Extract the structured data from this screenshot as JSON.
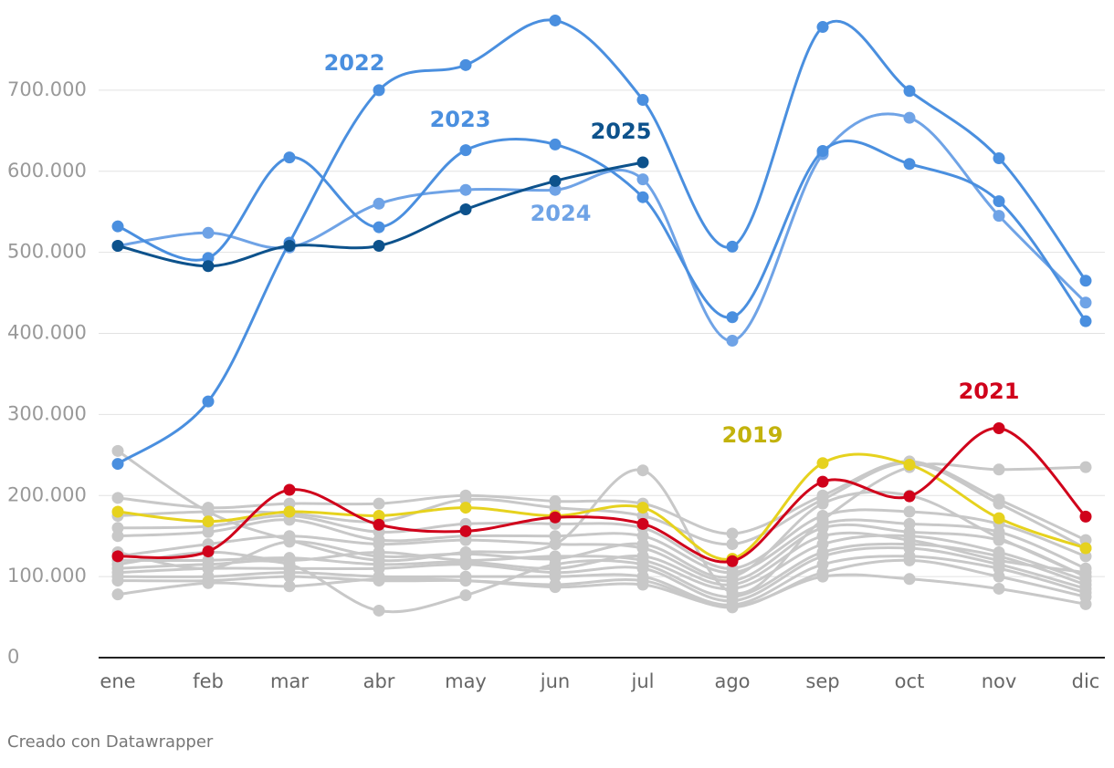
{
  "chart_data": {
    "type": "line",
    "categories": [
      "ene",
      "feb",
      "mar",
      "abr",
      "may",
      "jun",
      "jul",
      "ago",
      "sep",
      "oct",
      "nov",
      "dic"
    ],
    "ylim": [
      0,
      800000
    ],
    "yticks": [
      0,
      {
        "value": 100000,
        "label": "100.000"
      },
      {
        "value": 200000,
        "label": "200.000"
      },
      {
        "value": 300000,
        "label": "300.000"
      },
      {
        "value": 400000,
        "label": "400.000"
      },
      {
        "value": 500000,
        "label": "500.000"
      },
      {
        "value": 600000,
        "label": "600.000"
      },
      {
        "value": 700000,
        "label": "700.000"
      }
    ],
    "grid": true,
    "series": [
      {
        "color": "#c8c8c8",
        "values": [
          255000,
          180000,
          145000,
          120000,
          130000,
          140000,
          231000,
          80000,
          170000,
          235000,
          232000,
          235000
        ]
      },
      {
        "color": "#c8c8c8",
        "values": [
          197000,
          185000,
          190000,
          190000,
          200000,
          193000,
          190000,
          153000,
          200000,
          242000,
          195000,
          145000
        ]
      },
      {
        "color": "#c8c8c8",
        "values": [
          175000,
          180000,
          178000,
          168000,
          195000,
          185000,
          175000,
          140000,
          195000,
          240000,
          190000,
          135000
        ]
      },
      {
        "color": "#c8c8c8",
        "values": [
          160000,
          162000,
          175000,
          155000,
          165000,
          165000,
          160000,
          110000,
          175000,
          180000,
          165000,
          125000
        ]
      },
      {
        "color": "#c8c8c8",
        "values": [
          150000,
          155000,
          170000,
          145000,
          150000,
          150000,
          150000,
          105000,
          165000,
          165000,
          155000,
          110000
        ]
      },
      {
        "color": "#c8c8c8",
        "values": [
          125000,
          140000,
          150000,
          140000,
          145000,
          140000,
          135000,
          95000,
          160000,
          155000,
          145000,
          100000
        ]
      },
      {
        "color": "#c8c8c8",
        "values": [
          115000,
          130000,
          120000,
          130000,
          120000,
          125000,
          120000,
          85000,
          140000,
          150000,
          130000,
          95000
        ]
      },
      {
        "color": "#c8c8c8",
        "values": [
          110000,
          115000,
          115000,
          58000,
          77000,
          115000,
          115000,
          75000,
          130000,
          140000,
          125000,
          90000
        ]
      },
      {
        "color": "#c8c8c8",
        "values": [
          105000,
          110000,
          110000,
          110000,
          115000,
          105000,
          110000,
          70000,
          125000,
          135000,
          115000,
          85000
        ]
      },
      {
        "color": "#c8c8c8",
        "values": [
          100000,
          100000,
          105000,
          100000,
          100000,
          100000,
          100000,
          65000,
          115000,
          125000,
          110000,
          80000
        ]
      },
      {
        "color": "#c8c8c8",
        "values": [
          95000,
          95000,
          100000,
          95000,
          95000,
          90000,
          95000,
          62000,
          105000,
          120000,
          100000,
          75000
        ]
      },
      {
        "color": "#c8c8c8",
        "values": [
          78000,
          92000,
          88000,
          97000,
          95000,
          87000,
          90000,
          63000,
          100000,
          97000,
          85000,
          66000
        ]
      },
      {
        "color": "#c8c8c8",
        "values": [
          130000,
          110000,
          143000,
          125000,
          128000,
          122000,
          140000,
          100000,
          190000,
          200000,
          148000,
          100000
        ]
      },
      {
        "color": "#c8c8c8",
        "values": [
          120000,
          120000,
          123000,
          115000,
          118000,
          110000,
          125000,
          90000,
          150000,
          145000,
          120000,
          105000
        ]
      },
      {
        "name": "2019",
        "color": "#e6d21e",
        "values": [
          180000,
          168000,
          180000,
          175000,
          185000,
          175000,
          185000,
          122000,
          240000,
          238000,
          172000,
          135000
        ]
      },
      {
        "name": "2021",
        "color": "#d0021b",
        "values": [
          125000,
          131000,
          207000,
          164000,
          156000,
          173000,
          165000,
          119000,
          217000,
          199000,
          283000,
          174000
        ]
      },
      {
        "name": "2024",
        "color": "#6fa3e6",
        "values": [
          508000,
          524000,
          506000,
          560000,
          577000,
          577000,
          590000,
          391000,
          621000,
          666000,
          545000,
          438000
        ]
      },
      {
        "name": "2023",
        "color": "#4a8fdf",
        "values": [
          532000,
          493000,
          617000,
          531000,
          626000,
          633000,
          568000,
          420000,
          625000,
          609000,
          563000,
          415000
        ]
      },
      {
        "name": "2022",
        "color": "#4a8fdf",
        "values": [
          239000,
          316000,
          512000,
          700000,
          731000,
          786000,
          688000,
          507000,
          778000,
          699000,
          616000,
          465000
        ]
      },
      {
        "name": "2025",
        "color": "#0d528c",
        "values": [
          508000,
          483000,
          508000,
          508000,
          553000,
          588000,
          611000,
          null,
          null,
          null,
          null,
          null
        ]
      }
    ],
    "credit": "Creado con Datawrapper"
  }
}
